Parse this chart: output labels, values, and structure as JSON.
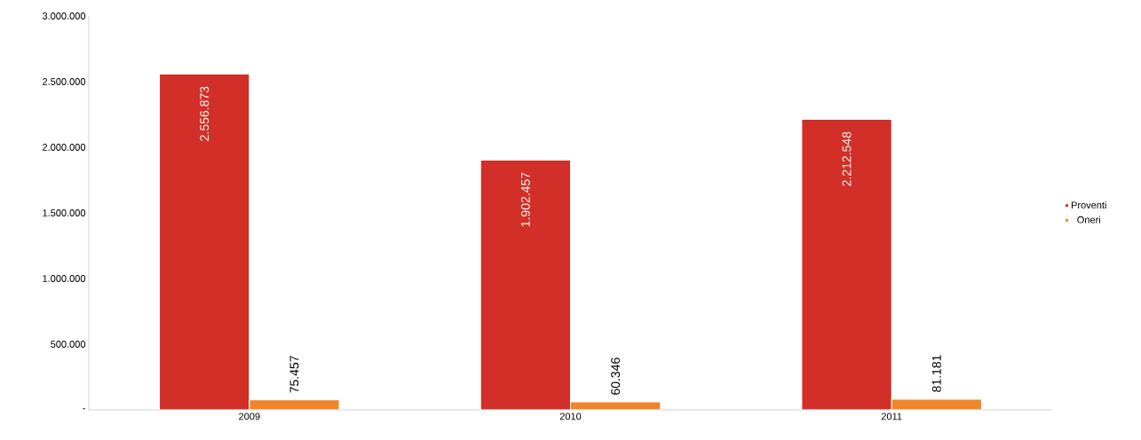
{
  "chart_data": {
    "type": "bar",
    "categories": [
      "2009",
      "2010",
      "2011"
    ],
    "series": [
      {
        "name": "Proventi",
        "color": "#d12f27",
        "values": [
          2556873,
          1902457,
          2212548
        ],
        "value_labels": [
          "2.556.873",
          "1.902.457",
          "2.212.548"
        ]
      },
      {
        "name": "Oneri",
        "color": "#f0862a",
        "values": [
          75457,
          60346,
          81181
        ],
        "value_labels": [
          "75.457",
          "60.346",
          "81.181"
        ]
      }
    ],
    "ylim": [
      0,
      3000000
    ],
    "yticks": [
      {
        "value": 0,
        "label": "-"
      },
      {
        "value": 500000,
        "label": "500.000"
      },
      {
        "value": 1000000,
        "label": "1.000.000"
      },
      {
        "value": 1500000,
        "label": "1.500.000"
      },
      {
        "value": 2000000,
        "label": "2.000.000"
      },
      {
        "value": 2500000,
        "label": "2.500.000"
      },
      {
        "value": 3000000,
        "label": "3.000.000"
      }
    ],
    "legend": "right"
  }
}
